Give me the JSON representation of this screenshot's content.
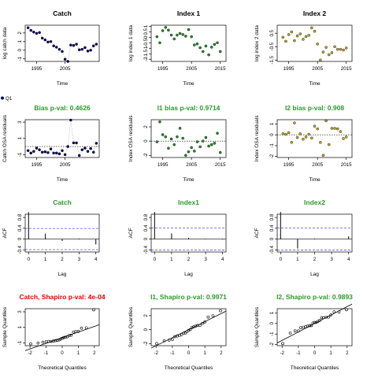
{
  "legend": {
    "label": "Q1"
  },
  "colors": {
    "catch": "#0a0a66",
    "index1": "#2a8a2a",
    "index2": "#b5a333",
    "title_green": "#2a9a2a",
    "title_red": "#e60000",
    "acf_ci": "#5555ee"
  },
  "chart_data": [
    {
      "type": "scatter",
      "title": "Catch",
      "title_color": "black",
      "xlabel": "Time",
      "ylabel": "log catch data",
      "xlim": [
        1991,
        2017
      ],
      "ylim": [
        -1.3,
        2.9
      ],
      "xticks": [
        1995,
        2005
      ],
      "yticks": [
        -1,
        0,
        1,
        2
      ],
      "x": [
        1992,
        1993,
        1994,
        1995,
        1996,
        1997,
        1998,
        1999,
        2000,
        2001,
        2002,
        2003,
        2004,
        2005,
        2006,
        2007,
        2008,
        2009,
        2010,
        2011,
        2012,
        2013,
        2014,
        2015,
        2016
      ],
      "y": [
        2.6,
        2.3,
        2.1,
        1.95,
        2.05,
        1.4,
        1.2,
        0.95,
        1.0,
        0.5,
        0.35,
        0.1,
        -0.15,
        -1.05,
        -1.3,
        0.6,
        0.55,
        0.7,
        0.05,
        0.1,
        0.3,
        -0.1,
        0.0,
        0.5,
        0.7
      ],
      "line": true,
      "hline": null
    },
    {
      "type": "scatter",
      "title": "Index 1",
      "title_color": "black",
      "xlabel": "Time",
      "ylabel": "log index 1 data",
      "xlim": [
        1991,
        2017
      ],
      "ylim": [
        -2.2,
        1.1
      ],
      "xticks": [
        1995,
        2005,
        2015
      ],
      "yticks": [
        -2.0,
        -1.5,
        -1.0,
        -0.5,
        0.0,
        0.5,
        1.0
      ],
      "x": [
        1993,
        1994,
        1995,
        1996,
        1997,
        1998,
        1999,
        2000,
        2001,
        2002,
        2003,
        2004,
        2005,
        2006,
        2007,
        2008,
        2009,
        2010,
        2011,
        2012,
        2013,
        2014,
        2015
      ],
      "y": [
        0.05,
        -0.5,
        0.6,
        0.9,
        0.65,
        0.2,
        -0.15,
        0.2,
        0.35,
        0.25,
        0.1,
        0.7,
        0.05,
        -0.7,
        -0.6,
        -0.95,
        -1.3,
        -0.8,
        -1.6,
        -0.9,
        -0.65,
        -0.5,
        -1.3
      ],
      "line": false,
      "hline": null
    },
    {
      "type": "scatter",
      "title": "Index 2",
      "title_color": "black",
      "xlabel": "Time",
      "ylabel": "log index 2 data",
      "xlim": [
        1991,
        2017
      ],
      "ylim": [
        -1.6,
        1.1
      ],
      "xticks": [
        1995,
        2005,
        2015
      ],
      "yticks": [
        -1.5,
        -0.5,
        0.5
      ],
      "x": [
        1993,
        1994,
        1995,
        1996,
        1997,
        1998,
        1999,
        2000,
        2001,
        2002,
        2003,
        2004,
        2005,
        2006,
        2007,
        2008,
        2009,
        2010,
        2011,
        2012,
        2013,
        2014,
        2015
      ],
      "y": [
        0.2,
        -0.1,
        0.4,
        0.6,
        -0.05,
        0.3,
        0.45,
        0.05,
        0.25,
        0.35,
        0.9,
        0.65,
        -0.3,
        -1.5,
        -0.9,
        -0.55,
        -1.1,
        -0.95,
        -0.5,
        -0.7,
        -0.7,
        -0.75,
        -0.6
      ],
      "line": false,
      "hline": null
    },
    {
      "type": "scatter",
      "title": "Bias p-val: 0.4626",
      "title_color": "green",
      "xlabel": "Time",
      "ylabel": "Catch OSA residuals",
      "xlim": [
        1991,
        2017
      ],
      "ylim": [
        -1.35,
        3.3
      ],
      "xticks": [
        1995,
        2005
      ],
      "yticks": [
        -1,
        1,
        3
      ],
      "x": [
        1992,
        1993,
        1994,
        1995,
        1996,
        1997,
        1998,
        1999,
        2000,
        2001,
        2002,
        2003,
        2004,
        2005,
        2006,
        2007,
        2008,
        2009,
        2010,
        2011,
        2012,
        2013,
        2014,
        2015,
        2016
      ],
      "y": [
        -0.5,
        -0.8,
        -0.6,
        -0.2,
        -0.4,
        -0.7,
        -0.65,
        -0.75,
        -0.3,
        -0.8,
        -0.8,
        -0.9,
        -0.5,
        -1.0,
        0.0,
        3.25,
        0.45,
        0.45,
        -1.1,
        -0.4,
        -0.2,
        -0.6,
        -0.25,
        -0.7,
        0.4
      ],
      "line": true,
      "hline": 0
    },
    {
      "type": "scatter",
      "title": "I1 bias p-val: 0.9714",
      "title_color": "green",
      "xlabel": "Time",
      "ylabel": "Index OSA residuals",
      "xlim": [
        1991,
        2017
      ],
      "ylim": [
        -2.3,
        3.0
      ],
      "xticks": [
        1995,
        2005,
        2015
      ],
      "yticks": [
        -2,
        0,
        2
      ],
      "x": [
        1993,
        1994,
        1995,
        1996,
        1997,
        1998,
        1999,
        2000,
        2001,
        2002,
        2003,
        2004,
        2005,
        2006,
        2007,
        2008,
        2009,
        2010,
        2011,
        2012,
        2013,
        2014,
        2015
      ],
      "y": [
        -0.1,
        2.7,
        0.9,
        0.6,
        -1.0,
        0.3,
        -0.5,
        0.6,
        1.8,
        0.4,
        -2.0,
        -1.5,
        -0.9,
        -1.4,
        -0.1,
        -0.8,
        0.0,
        0.5,
        -0.7,
        -0.5,
        -0.3,
        1.1,
        -1.6
      ],
      "line": false,
      "hline": 0
    },
    {
      "type": "scatter",
      "title": "I2 bias p-val: 0.908",
      "title_color": "green",
      "xlabel": "Time",
      "ylabel": "Index OSA residuals",
      "xlim": [
        1991,
        2017
      ],
      "ylim": [
        -2.1,
        1.4
      ],
      "xticks": [
        1995,
        2005,
        2015
      ],
      "yticks": [
        -2,
        -1,
        0,
        1
      ],
      "x": [
        1993,
        1994,
        1995,
        1996,
        1997,
        1998,
        1999,
        2000,
        2001,
        2002,
        2003,
        2004,
        2005,
        2006,
        2007,
        2008,
        2009,
        2010,
        2011,
        2012,
        2013,
        2014,
        2015
      ],
      "y": [
        0.1,
        0.05,
        0.2,
        -0.7,
        1.1,
        -0.25,
        0.1,
        -0.4,
        -0.2,
        0.05,
        -0.3,
        0.8,
        0.55,
        -0.7,
        -1.9,
        1.3,
        -0.9,
        0.6,
        0.6,
        0.55,
        0.3,
        -0.35,
        -0.2
      ],
      "line": false,
      "hline": 0
    },
    {
      "type": "bar",
      "subtype": "acf",
      "title": "Catch",
      "title_color": "green",
      "xlabel": "Lag",
      "ylabel": "ACF",
      "xlim": [
        -0.2,
        4.2
      ],
      "ylim": [
        -0.48,
        0.92
      ],
      "xticks": [
        0,
        1,
        2,
        3,
        4
      ],
      "yticks": [
        -0.4,
        0.0,
        0.4,
        0.8
      ],
      "lags": [
        0,
        1,
        2,
        3,
        4
      ],
      "values": [
        1.0,
        0.2,
        -0.07,
        0.02,
        -0.2
      ],
      "ci": 0.392
    },
    {
      "type": "bar",
      "subtype": "acf",
      "title": "Index1",
      "title_color": "green",
      "xlabel": "Lag",
      "ylabel": "ACF",
      "xlim": [
        -0.2,
        4.2
      ],
      "ylim": [
        -0.48,
        0.92
      ],
      "xticks": [
        0,
        1,
        2,
        3,
        4
      ],
      "yticks": [
        -0.4,
        0.0,
        0.4,
        0.8
      ],
      "lags": [
        0,
        1,
        2,
        3,
        4
      ],
      "values": [
        1.0,
        0.21,
        0.04,
        0.01,
        -0.02
      ],
      "ci": 0.409
    },
    {
      "type": "bar",
      "subtype": "acf",
      "title": "Index2",
      "title_color": "green",
      "xlabel": "Lag",
      "ylabel": "ACF",
      "xlim": [
        -0.2,
        4.2
      ],
      "ylim": [
        -0.48,
        0.92
      ],
      "xticks": [
        0,
        1,
        2,
        3,
        4
      ],
      "yticks": [
        -0.4,
        0.0,
        0.4,
        0.8
      ],
      "lags": [
        0,
        1,
        2,
        3,
        4
      ],
      "values": [
        1.0,
        -0.35,
        0.02,
        0.0,
        0.1
      ],
      "ci": 0.409
    },
    {
      "type": "scatter",
      "subtype": "qq",
      "title": "Catch, Shapiro p-val: 4e-04",
      "title_color": "red",
      "xlabel": "Theoretical Quantiles",
      "ylabel": "Sample Quantiles",
      "xlim": [
        -2.3,
        2.3
      ],
      "ylim": [
        -1.35,
        3.4
      ],
      "xticks": [
        -2,
        -1,
        0,
        1,
        2
      ],
      "yticks": [
        -1,
        1,
        3
      ],
      "x": [
        -1.96,
        -1.5,
        -1.2,
        -1.0,
        -0.85,
        -0.7,
        -0.55,
        -0.43,
        -0.31,
        -0.2,
        -0.1,
        0.0,
        0.1,
        0.2,
        0.31,
        0.43,
        0.55,
        0.7,
        0.85,
        1.0,
        1.2,
        1.5,
        1.96
      ],
      "y": [
        -1.1,
        -1.0,
        -0.9,
        -0.85,
        -0.8,
        -0.8,
        -0.75,
        -0.7,
        -0.65,
        -0.6,
        -0.5,
        -0.4,
        -0.3,
        -0.25,
        -0.2,
        -0.05,
        0.0,
        0.4,
        0.45,
        0.5,
        0.9,
        0.95,
        3.25
      ],
      "refline": [
        -0.32,
        0.72
      ]
    },
    {
      "type": "scatter",
      "subtype": "qq",
      "title": "I1, Shapiro p-val: 0.9971",
      "title_color": "green",
      "xlabel": "Theoretical Quantiles",
      "ylabel": "Sample Quantiles",
      "xlim": [
        -2.3,
        2.3
      ],
      "ylim": [
        -2.3,
        3.0
      ],
      "xticks": [
        -2,
        -1,
        0,
        1,
        2
      ],
      "yticks": [
        -2,
        0,
        2
      ],
      "x": [
        -1.96,
        -1.5,
        -1.2,
        -1.0,
        -0.85,
        -0.7,
        -0.55,
        -0.43,
        -0.31,
        -0.2,
        -0.1,
        0.0,
        0.1,
        0.2,
        0.31,
        0.43,
        0.55,
        0.7,
        0.85,
        1.0,
        1.2,
        1.5,
        1.96
      ],
      "y": [
        -2.0,
        -1.6,
        -1.5,
        -1.4,
        -1.0,
        -0.9,
        -0.8,
        -0.7,
        -0.5,
        -0.5,
        -0.3,
        -0.1,
        0.0,
        0.3,
        0.4,
        0.5,
        0.6,
        0.6,
        0.9,
        1.1,
        1.8,
        2.0,
        2.7
      ],
      "refline": [
        0.0,
        1.15
      ]
    },
    {
      "type": "scatter",
      "subtype": "qq",
      "title": "I2, Shapiro p-val: 0.9893",
      "title_color": "green",
      "xlabel": "Theoretical Quantiles",
      "ylabel": "Sample Quantiles",
      "xlim": [
        -2.3,
        2.3
      ],
      "ylim": [
        -2.1,
        1.4
      ],
      "xticks": [
        -2,
        -1,
        0,
        1,
        2
      ],
      "yticks": [
        -2,
        -1,
        0,
        1
      ],
      "x": [
        -1.96,
        -1.5,
        -1.2,
        -1.0,
        -0.85,
        -0.7,
        -0.55,
        -0.43,
        -0.31,
        -0.2,
        -0.1,
        0.0,
        0.1,
        0.2,
        0.31,
        0.43,
        0.55,
        0.7,
        0.85,
        1.0,
        1.2,
        1.5,
        1.96
      ],
      "y": [
        -1.9,
        -0.9,
        -0.7,
        -0.7,
        -0.4,
        -0.35,
        -0.3,
        -0.25,
        -0.2,
        -0.2,
        0.05,
        0.1,
        0.1,
        0.2,
        0.3,
        0.55,
        0.55,
        0.6,
        0.6,
        0.8,
        1.1,
        1.1,
        1.3
      ],
      "refline": [
        0.0,
        0.8
      ]
    }
  ]
}
